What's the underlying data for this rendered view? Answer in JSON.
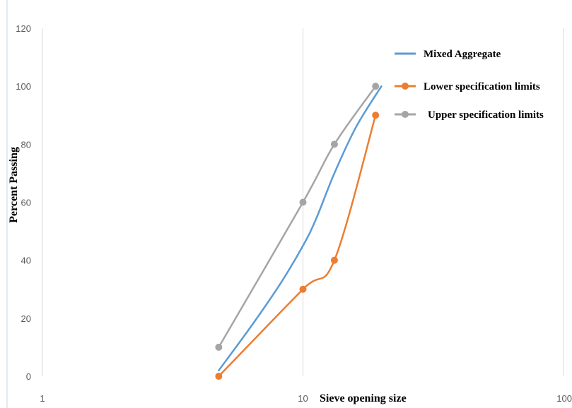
{
  "chart_data": {
    "type": "line",
    "x_scale": "log",
    "xlim": [
      1,
      100
    ],
    "ylim": [
      0,
      120
    ],
    "x_ticks": [
      "1",
      "10",
      "100"
    ],
    "y_ticks": [
      "0",
      "20",
      "40",
      "60",
      "80",
      "100",
      "120"
    ],
    "xlabel": "Sieve opening size",
    "ylabel": "Percent Passing",
    "grid": "vertical",
    "legend": "top-right",
    "series": [
      {
        "name": "Mixed Aggregate",
        "color": "#5B9BD5",
        "markers": false,
        "points": [
          [
            4.75,
            2
          ],
          [
            6.3,
            17
          ],
          [
            8.2,
            32
          ],
          [
            10,
            45
          ],
          [
            11.2,
            54
          ],
          [
            13.2,
            70
          ],
          [
            16,
            86
          ],
          [
            20,
            100
          ]
        ]
      },
      {
        "name": "Lower specification limits",
        "color": "#ED7D31",
        "markers": true,
        "points": [
          [
            4.75,
            0
          ],
          [
            10,
            30
          ],
          [
            13.2,
            40
          ],
          [
            19,
            90
          ]
        ]
      },
      {
        "name": "Upper specification limits",
        "color": "#A5A5A5",
        "markers": true,
        "points": [
          [
            4.75,
            10
          ],
          [
            10,
            60
          ],
          [
            13.2,
            80
          ],
          [
            19,
            100
          ]
        ]
      }
    ]
  }
}
